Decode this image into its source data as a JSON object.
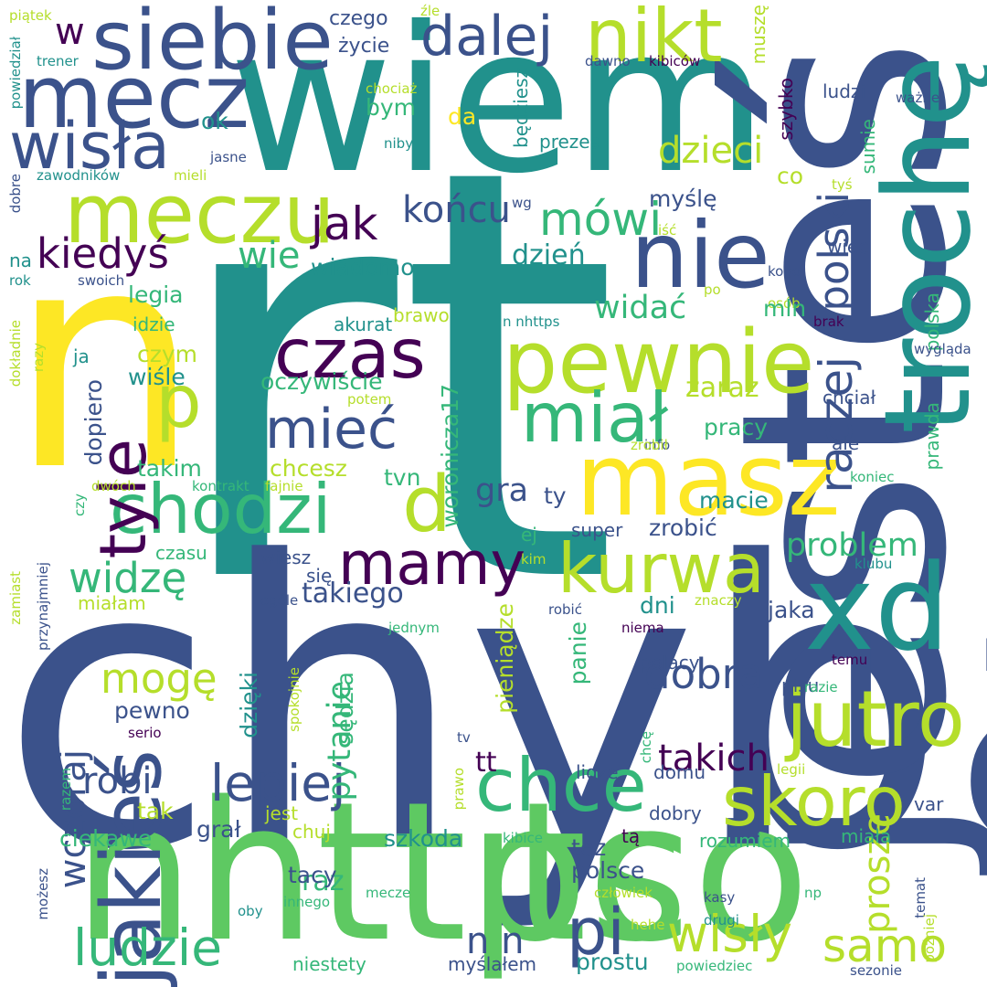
{
  "palette": {
    "purple": "#440154",
    "indigo": "#3b528b",
    "teal": "#21918c",
    "green": "#5ec962",
    "yellow": "#fde725",
    "lime": "#b5de2b",
    "mint": "#35b779",
    "blue": "#31688e"
  },
  "words": [
    "rt",
    "chyba",
    "wiem",
    "n",
    "nhttps",
    "tco",
    "jesteś",
    "masz",
    "xd",
    "trochę",
    "mecz",
    "siebie",
    "nikt",
    "dalej",
    "wisła",
    "meczu",
    "nie",
    "pewnie",
    "p",
    "czas",
    "miał",
    "mieć",
    "chodzi",
    "d",
    "kurwa",
    "mamy",
    "tyle",
    "jakieś",
    "jutro",
    "skoro",
    "chce",
    "lepiej",
    "ludzie",
    "pi",
    "samo",
    "wisły",
    "raczej",
    "polski",
    "mówi",
    "jak",
    "kiedyś",
    "końcu",
    "dzieci",
    "widzę",
    "mogę",
    "robi",
    "wczoraj",
    "takich",
    "dobra",
    "proszę",
    "gra",
    "problem",
    "takiego",
    "n n",
    "tt",
    "raz",
    "w",
    "czego",
    "życie",
    "muszę",
    "ludzi",
    "chociaż",
    "kibiców",
    "trener",
    "piątek",
    "powiedział",
    "źle",
    "dawno",
    "ważne",
    "ok",
    "bym",
    "da",
    "prezes",
    "będziesz",
    "szybko",
    "niby",
    "jasne",
    "zawodników",
    "mieli",
    "dobre",
    "wg",
    "iść",
    "tyś",
    "myślę",
    "co",
    "sumie",
    "na",
    "wie",
    "dzień",
    "wiadomo",
    "brawo",
    "wiec",
    "kogo",
    "rok",
    "swoich",
    "po",
    "osób",
    "legia",
    "widać",
    "mln",
    "brak",
    "idzie",
    "akurat",
    "n nhttps",
    "polska",
    "czym",
    "ja",
    "wygląda",
    "razy",
    "dokładnie",
    "wiśle",
    "oczywiście",
    "potem",
    "woronicza17",
    "zaraz",
    "chciał",
    "prawda",
    "dopiero",
    "pracy",
    "info",
    "ale",
    "takim",
    "chcesz",
    "tvn",
    "zrobił",
    "koniec",
    "dwóch",
    "kontrakt",
    "fajnie",
    "czy",
    "ty",
    "macie",
    "zrobić",
    "ej",
    "super",
    "czasu",
    "wiesz",
    "się",
    "kim",
    "klubu",
    "miałam",
    "dni",
    "znaczy",
    "jaka",
    "zamiast",
    "przynajmniej",
    "ogóle",
    "robić",
    "jednym",
    "pieniądze",
    "niema",
    "polacy",
    "pisu",
    "temu",
    "razie",
    "pewno",
    "dzięki",
    "pytanie",
    "panie",
    "serio",
    "spokojnie",
    "sędzia",
    "tv",
    "chcę",
    "lidze",
    "domu",
    "legii",
    "razem",
    "prawo",
    "tak",
    "jest",
    "ciekawe",
    "grał",
    "chuj",
    "szkoda",
    "tą",
    "dobry",
    "rozumiem",
    "miała",
    "var",
    "tez",
    "polsce",
    "kibice",
    "tacy",
    "temat",
    "możesz",
    "innego",
    "mecze",
    "człowiek",
    "kasy",
    "drugi",
    "np",
    "oby",
    "później",
    "hehe",
    "niestety",
    "prostu",
    "myślałem",
    "powiedziec",
    "sezonie"
  ]
}
